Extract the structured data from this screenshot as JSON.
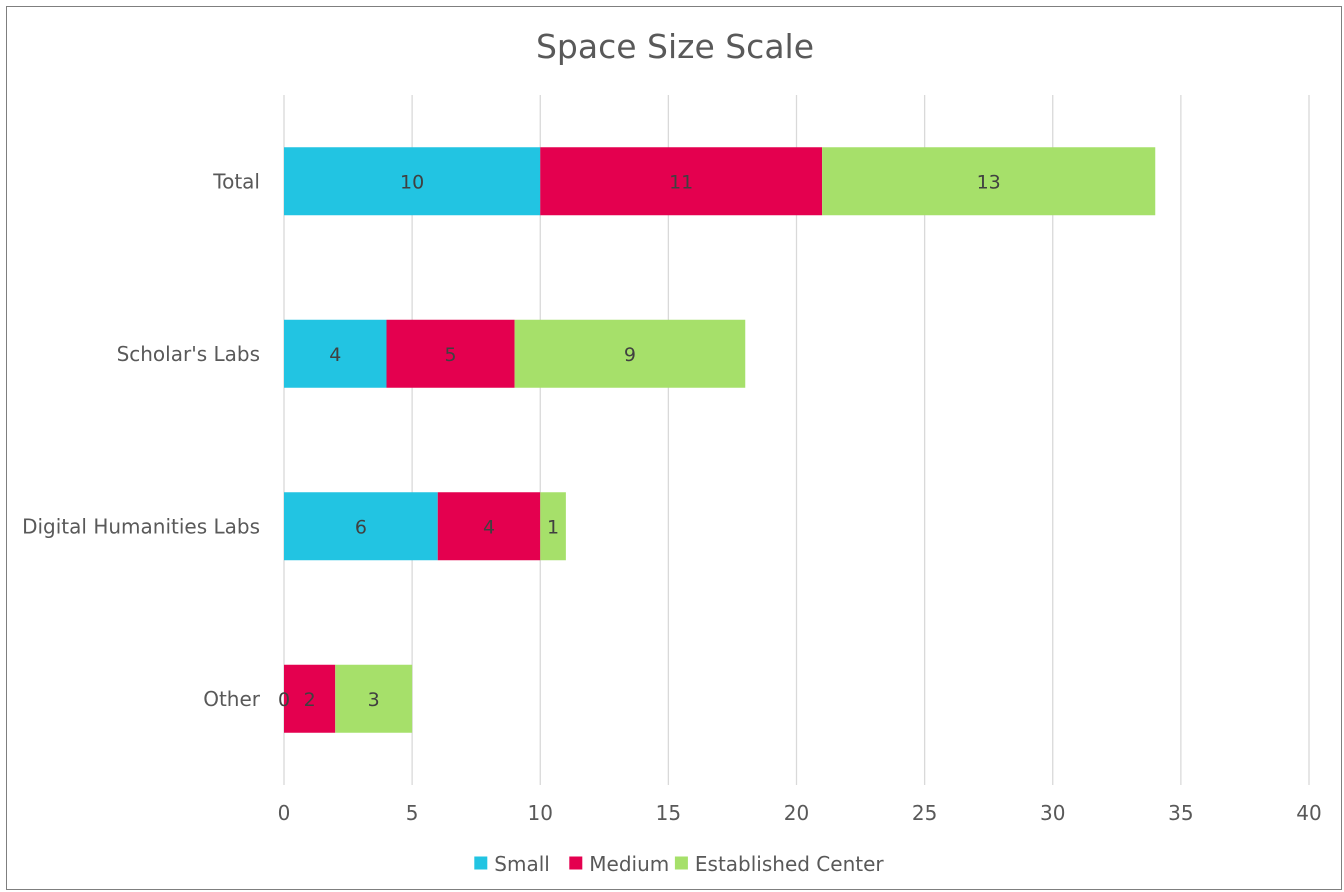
{
  "chart_data": {
    "type": "bar",
    "orientation": "horizontal",
    "stacked": true,
    "title": "Space Size Scale",
    "categories": [
      "Total",
      "Scholar's Labs",
      "Digital Humanities Labs",
      "Other"
    ],
    "series": [
      {
        "name": "Small",
        "color": "#22c4e2",
        "values": [
          10,
          4,
          6,
          0
        ]
      },
      {
        "name": "Medium",
        "color": "#e4004f",
        "values": [
          11,
          5,
          4,
          2
        ]
      },
      {
        "name": "Established Center",
        "color": "#a6e06a",
        "values": [
          13,
          9,
          1,
          3
        ]
      }
    ],
    "xlim": [
      0,
      40
    ],
    "xticks": [
      0,
      5,
      10,
      15,
      20,
      25,
      30,
      35,
      40
    ],
    "grid": true,
    "data_labels": true,
    "legend": "bottom"
  }
}
